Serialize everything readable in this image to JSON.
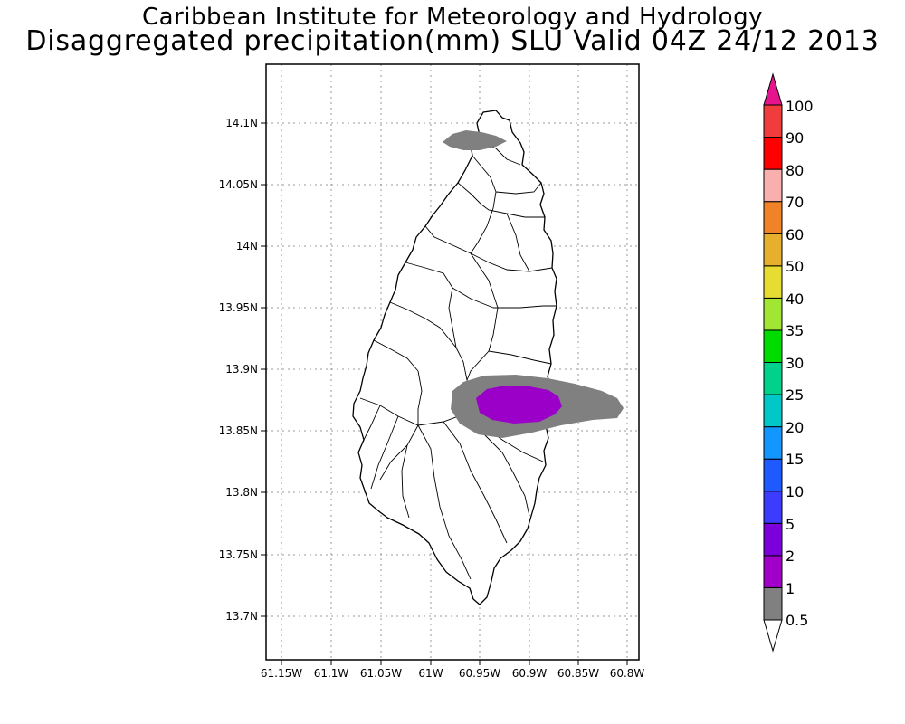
{
  "header": {
    "title_line1": "Caribbean Institute for Meteorology and Hydrology",
    "title_line2": "Disaggregated precipitation(mm) SLU Valid 04Z 24/12 2013"
  },
  "map": {
    "lon_ticks": [
      "61.15W",
      "61.1W",
      "61.05W",
      "61W",
      "60.95W",
      "60.9W",
      "60.85W",
      "60.8W"
    ],
    "lat_ticks": [
      "14.1N",
      "14.05N",
      "14N",
      "13.95N",
      "13.9N",
      "13.85N",
      "13.8N",
      "13.75N",
      "13.7N"
    ],
    "lon_range": [
      -61.162,
      -60.79
    ],
    "lat_range": [
      13.665,
      14.147
    ],
    "grid": true,
    "colors": {
      "land_fill": "#ffffff",
      "coast": "#000000",
      "grid": "#999999"
    }
  },
  "precip_areas": [
    {
      "name": "north-tip",
      "class": "0.5-1",
      "color": "#808080",
      "center_lon": -60.955,
      "center_lat": 14.085
    },
    {
      "name": "east-band",
      "class": "0.5-1",
      "color": "#808080",
      "center_lon": -60.905,
      "center_lat": 13.868
    },
    {
      "name": "east-core",
      "class": "1-2",
      "color": "#9a00c8",
      "center_lon": -60.92,
      "center_lat": 13.868
    }
  ],
  "colorbar": {
    "labels": [
      "0.5",
      "1",
      "2",
      "5",
      "10",
      "15",
      "20",
      "25",
      "30",
      "35",
      "40",
      "50",
      "60",
      "70",
      "80",
      "90",
      "100"
    ],
    "colors": [
      "#808080",
      "#a000c8",
      "#7b00dc",
      "#3c3cff",
      "#1e5aff",
      "#1496ff",
      "#00c8c8",
      "#00d28c",
      "#00dc00",
      "#a0e632",
      "#e6dc32",
      "#e6af2d",
      "#f08228",
      "#faafaf",
      "#ff0000",
      "#f03c3c",
      "#e6148c"
    ],
    "low_extend_color": "#ffffff",
    "high_extend_color": "#e6148c"
  }
}
